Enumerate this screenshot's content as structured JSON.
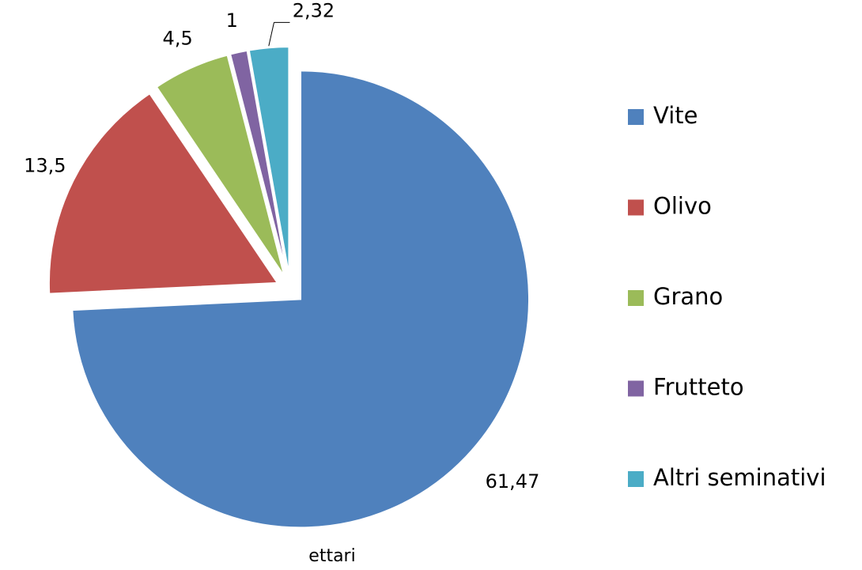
{
  "chart_data": {
    "type": "pie",
    "categories": [
      "Vite",
      "Olivo",
      "Grano",
      "Frutteto",
      "Altri seminativi"
    ],
    "values": [
      61.47,
      13.5,
      4.5,
      1,
      2.32
    ],
    "value_labels": [
      "61,47",
      "13,5",
      "4,5",
      "1",
      "2,32"
    ],
    "colors": [
      "#4f81bd",
      "#c0504d",
      "#9bbb59",
      "#8064a2",
      "#4bacc6"
    ],
    "x_label": "ettari",
    "legend": "right"
  }
}
